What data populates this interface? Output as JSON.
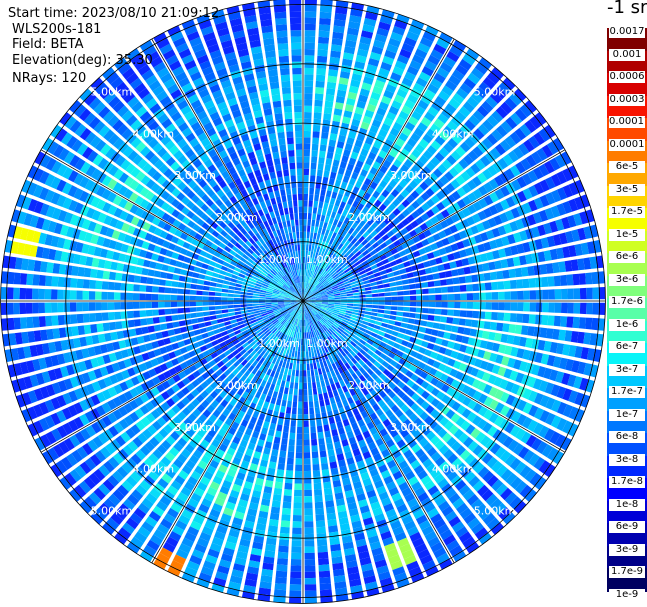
{
  "header": {
    "start_time": "Start time: 2023/08/10 21:09:12",
    "instrument": "WLS200s-181",
    "field": "Field: BETA",
    "elevation": "Elevation(deg): 35.30",
    "nrays": "NRays: 120"
  },
  "colorbar": {
    "unit": "-1 sr",
    "labels": [
      "0.0017",
      "0.001",
      "0.0006",
      "0.0003",
      "0.00017",
      "0.0001",
      "6e-5",
      "3e-5",
      "1.7e-5",
      "1e-5",
      "6e-6",
      "3e-6",
      "1.7e-6",
      "1e-6",
      "6e-7",
      "3e-7",
      "1.7e-7",
      "1e-7",
      "6e-8",
      "3e-8",
      "1.7e-8",
      "1e-8",
      "6e-9",
      "3e-9",
      "1.7e-9",
      "1e-9"
    ],
    "colors": [
      "#800000",
      "#b00000",
      "#d80000",
      "#f81400",
      "#ff4a00",
      "#ff7c00",
      "#ffa800",
      "#ffd400",
      "#f6ff00",
      "#d0ff22",
      "#a8ff50",
      "#80ff7c",
      "#58ffa8",
      "#30ffd2",
      "#08f4f8",
      "#00c8ff",
      "#00a0ff",
      "#0078ff",
      "#0050ff",
      "#0028ff",
      "#0000ff",
      "#0000d8",
      "#0000b0",
      "#000088",
      "#000060"
    ]
  },
  "chart_data": {
    "type": "heatmap",
    "projection": "polar-ppi",
    "nrays": 120,
    "range_rings_km": [
      1,
      2,
      3,
      4,
      5
    ],
    "range_ring_labels": [
      "1.00km",
      "2.00km",
      "3.00km",
      "4.00km",
      "5.00km"
    ],
    "max_range_km": 5.1,
    "spoke_step_deg": 30,
    "grid": true,
    "value_field": "BETA",
    "typical_value_range": [
      1e-09,
      1e-06
    ],
    "hotspots": [
      {
        "azimuth_deg": 283,
        "range_km": 4.8,
        "value": 1.7e-05
      },
      {
        "azimuth_deg": 207,
        "range_km": 5.0,
        "value": 3e-05
      },
      {
        "azimuth_deg": 158,
        "range_km": 4.6,
        "value": 3e-06
      }
    ]
  }
}
